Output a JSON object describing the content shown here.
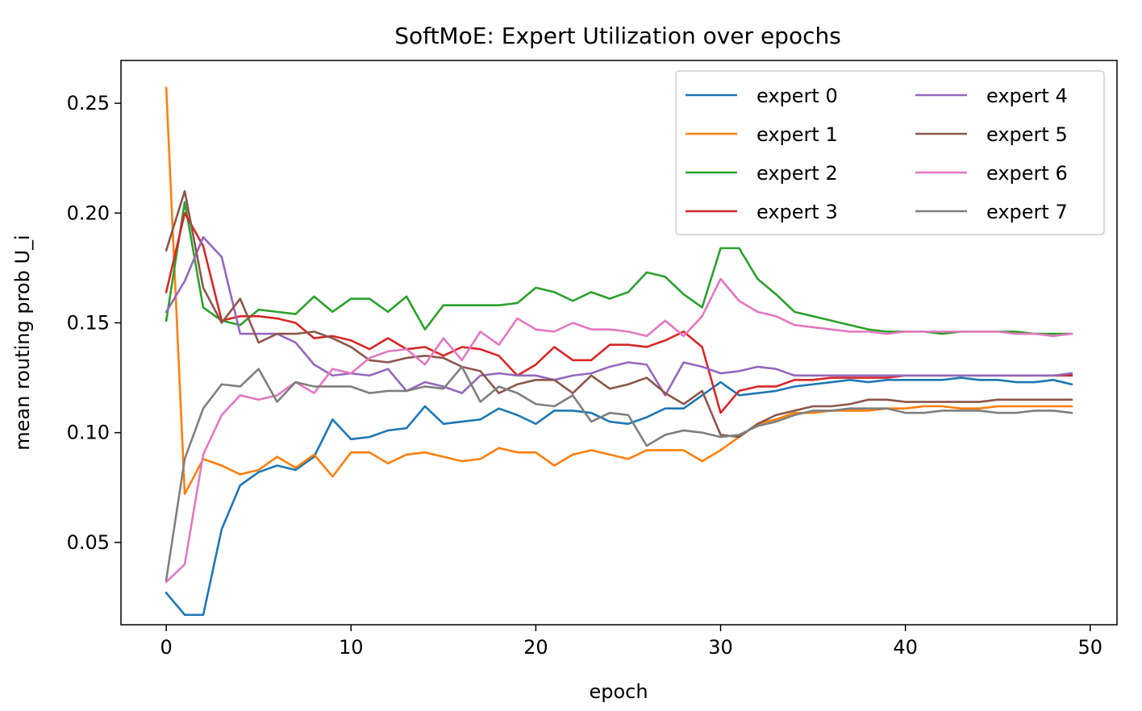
{
  "chart_data": {
    "type": "line",
    "title": "SoftMoE: Expert Utilization over epochs",
    "xlabel": "epoch",
    "ylabel": "mean routing prob U_i",
    "xlim": [
      -2.45,
      51.45
    ],
    "ylim": [
      0.0125,
      0.2695
    ],
    "xticks": [
      0,
      10,
      20,
      30,
      40,
      50
    ],
    "xtick_labels": [
      "0",
      "10",
      "20",
      "30",
      "40",
      "50"
    ],
    "yticks": [
      0.05,
      0.1,
      0.15,
      0.2,
      0.25
    ],
    "ytick_labels": [
      "0.05",
      "0.10",
      "0.15",
      "0.20",
      "0.25"
    ],
    "legend_location": "top-right",
    "legend_columns": 2,
    "series": [
      {
        "name": "expert 0",
        "color": "#1f77b4",
        "values": [
          0.027,
          0.017,
          0.017,
          0.056,
          0.076,
          0.082,
          0.085,
          0.083,
          0.089,
          0.106,
          0.097,
          0.098,
          0.101,
          0.102,
          0.112,
          0.104,
          0.105,
          0.106,
          0.111,
          0.108,
          0.104,
          0.11,
          0.11,
          0.109,
          0.105,
          0.104,
          0.107,
          0.111,
          0.111,
          0.117,
          0.123,
          0.117,
          0.118,
          0.119,
          0.121,
          0.122,
          0.123,
          0.124,
          0.123,
          0.124,
          0.124,
          0.124,
          0.124,
          0.125,
          0.124,
          0.124,
          0.123,
          0.123,
          0.124,
          0.122
        ]
      },
      {
        "name": "expert 1",
        "color": "#ff7f0e",
        "values": [
          0.257,
          0.072,
          0.088,
          0.085,
          0.081,
          0.083,
          0.089,
          0.084,
          0.09,
          0.08,
          0.091,
          0.091,
          0.086,
          0.09,
          0.091,
          0.089,
          0.087,
          0.088,
          0.093,
          0.091,
          0.091,
          0.085,
          0.09,
          0.092,
          0.09,
          0.088,
          0.092,
          0.092,
          0.092,
          0.087,
          0.092,
          0.098,
          0.104,
          0.106,
          0.109,
          0.109,
          0.11,
          0.11,
          0.11,
          0.111,
          0.111,
          0.112,
          0.112,
          0.111,
          0.111,
          0.112,
          0.112,
          0.112,
          0.112,
          0.112
        ]
      },
      {
        "name": "expert 2",
        "color": "#2ca02c",
        "values": [
          0.151,
          0.205,
          0.157,
          0.151,
          0.149,
          0.156,
          0.155,
          0.154,
          0.162,
          0.155,
          0.161,
          0.161,
          0.155,
          0.162,
          0.147,
          0.158,
          0.158,
          0.158,
          0.158,
          0.159,
          0.166,
          0.164,
          0.16,
          0.164,
          0.161,
          0.164,
          0.173,
          0.171,
          0.163,
          0.157,
          0.184,
          0.184,
          0.17,
          0.163,
          0.155,
          0.153,
          0.151,
          0.149,
          0.147,
          0.146,
          0.146,
          0.146,
          0.145,
          0.146,
          0.146,
          0.146,
          0.146,
          0.145,
          0.145,
          0.145
        ]
      },
      {
        "name": "expert 3",
        "color": "#d62728",
        "values": [
          0.164,
          0.2,
          0.185,
          0.151,
          0.153,
          0.153,
          0.152,
          0.15,
          0.143,
          0.144,
          0.142,
          0.138,
          0.143,
          0.138,
          0.139,
          0.135,
          0.139,
          0.138,
          0.135,
          0.126,
          0.131,
          0.139,
          0.133,
          0.133,
          0.14,
          0.14,
          0.139,
          0.142,
          0.146,
          0.139,
          0.109,
          0.119,
          0.121,
          0.121,
          0.124,
          0.124,
          0.125,
          0.125,
          0.125,
          0.125,
          0.126,
          0.126,
          0.126,
          0.126,
          0.126,
          0.126,
          0.126,
          0.126,
          0.126,
          0.126
        ]
      },
      {
        "name": "expert 4",
        "color": "#9467bd",
        "values": [
          0.155,
          0.169,
          0.189,
          0.18,
          0.145,
          0.145,
          0.145,
          0.141,
          0.131,
          0.126,
          0.127,
          0.126,
          0.129,
          0.119,
          0.123,
          0.121,
          0.118,
          0.126,
          0.127,
          0.126,
          0.126,
          0.124,
          0.126,
          0.127,
          0.13,
          0.132,
          0.131,
          0.117,
          0.132,
          0.13,
          0.127,
          0.128,
          0.13,
          0.129,
          0.126,
          0.126,
          0.126,
          0.126,
          0.126,
          0.126,
          0.126,
          0.126,
          0.126,
          0.126,
          0.126,
          0.126,
          0.126,
          0.126,
          0.126,
          0.127
        ]
      },
      {
        "name": "expert 5",
        "color": "#8c564b",
        "values": [
          0.183,
          0.21,
          0.166,
          0.15,
          0.161,
          0.141,
          0.145,
          0.145,
          0.146,
          0.143,
          0.139,
          0.133,
          0.132,
          0.134,
          0.135,
          0.134,
          0.13,
          0.128,
          0.118,
          0.122,
          0.124,
          0.124,
          0.118,
          0.126,
          0.12,
          0.122,
          0.125,
          0.118,
          0.113,
          0.119,
          0.099,
          0.098,
          0.104,
          0.108,
          0.11,
          0.112,
          0.112,
          0.113,
          0.115,
          0.115,
          0.114,
          0.114,
          0.114,
          0.114,
          0.114,
          0.115,
          0.115,
          0.115,
          0.115,
          0.115
        ]
      },
      {
        "name": "expert 6",
        "color": "#e377c2",
        "values": [
          0.032,
          0.04,
          0.09,
          0.108,
          0.117,
          0.115,
          0.117,
          0.123,
          0.118,
          0.129,
          0.127,
          0.134,
          0.137,
          0.138,
          0.131,
          0.143,
          0.133,
          0.146,
          0.14,
          0.152,
          0.147,
          0.146,
          0.15,
          0.147,
          0.147,
          0.146,
          0.144,
          0.151,
          0.144,
          0.153,
          0.17,
          0.16,
          0.155,
          0.153,
          0.149,
          0.148,
          0.147,
          0.146,
          0.146,
          0.145,
          0.146,
          0.146,
          0.146,
          0.146,
          0.146,
          0.146,
          0.145,
          0.145,
          0.144,
          0.145
        ]
      },
      {
        "name": "expert 7",
        "color": "#7f7f7f",
        "values": [
          0.033,
          0.088,
          0.111,
          0.122,
          0.121,
          0.129,
          0.114,
          0.123,
          0.121,
          0.121,
          0.121,
          0.118,
          0.119,
          0.119,
          0.121,
          0.12,
          0.13,
          0.114,
          0.121,
          0.118,
          0.113,
          0.112,
          0.117,
          0.105,
          0.109,
          0.108,
          0.094,
          0.099,
          0.101,
          0.1,
          0.098,
          0.099,
          0.103,
          0.105,
          0.108,
          0.11,
          0.11,
          0.111,
          0.111,
          0.111,
          0.109,
          0.109,
          0.11,
          0.11,
          0.11,
          0.109,
          0.109,
          0.11,
          0.11,
          0.109
        ]
      }
    ]
  }
}
